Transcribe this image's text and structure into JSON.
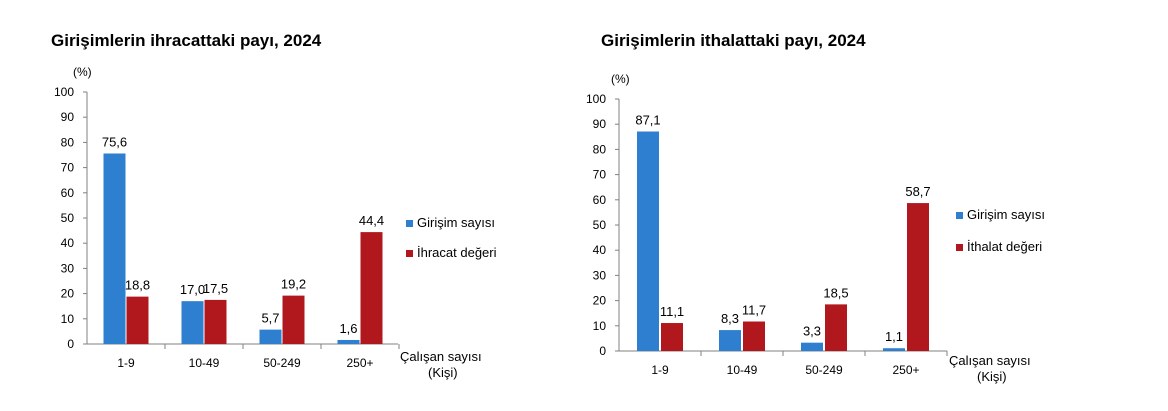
{
  "chart_data": [
    {
      "type": "bar",
      "title": "Girişimlerin ihracattaki payı, 2024",
      "unit_label": "(%)",
      "xlabel": [
        "Çalışan sayısı",
        "(Kişi)"
      ],
      "categories": [
        "1-9",
        "10-49",
        "50-249",
        "250+"
      ],
      "ylim": [
        0,
        100
      ],
      "yticks": [
        0,
        10,
        20,
        30,
        40,
        50,
        60,
        70,
        80,
        90,
        100
      ],
      "series": [
        {
          "name": "Girişim sayısı",
          "color": "#2e7fcf",
          "values": [
            75.6,
            17.0,
            5.7,
            1.6
          ],
          "labels": [
            "75,6",
            "17,0",
            "5,7",
            "1,6"
          ]
        },
        {
          "name": "İhracat değeri",
          "color": "#b0181d",
          "values": [
            18.8,
            17.5,
            19.2,
            44.4
          ],
          "labels": [
            "18,8",
            "17,5",
            "19,2",
            "44,4"
          ]
        }
      ],
      "legend": "right",
      "grid": false
    },
    {
      "type": "bar",
      "title": "Girişimlerin ithalattaki payı, 2024",
      "unit_label": "(%)",
      "xlabel": [
        "Çalışan sayısı",
        "(Kişi)"
      ],
      "categories": [
        "1-9",
        "10-49",
        "50-249",
        "250+"
      ],
      "ylim": [
        0,
        100
      ],
      "yticks": [
        0,
        10,
        20,
        30,
        40,
        50,
        60,
        70,
        80,
        90,
        100
      ],
      "series": [
        {
          "name": "Girişim sayısı",
          "color": "#2e7fcf",
          "values": [
            87.1,
            8.3,
            3.3,
            1.1
          ],
          "labels": [
            "87,1",
            "8,3",
            "3,3",
            "1,1"
          ]
        },
        {
          "name": "İthalat değeri",
          "color": "#b0181d",
          "values": [
            11.1,
            11.7,
            18.5,
            58.7
          ],
          "labels": [
            "11,1",
            "11,7",
            "18,5",
            "58,7"
          ]
        }
      ],
      "legend": "right",
      "grid": false
    }
  ]
}
